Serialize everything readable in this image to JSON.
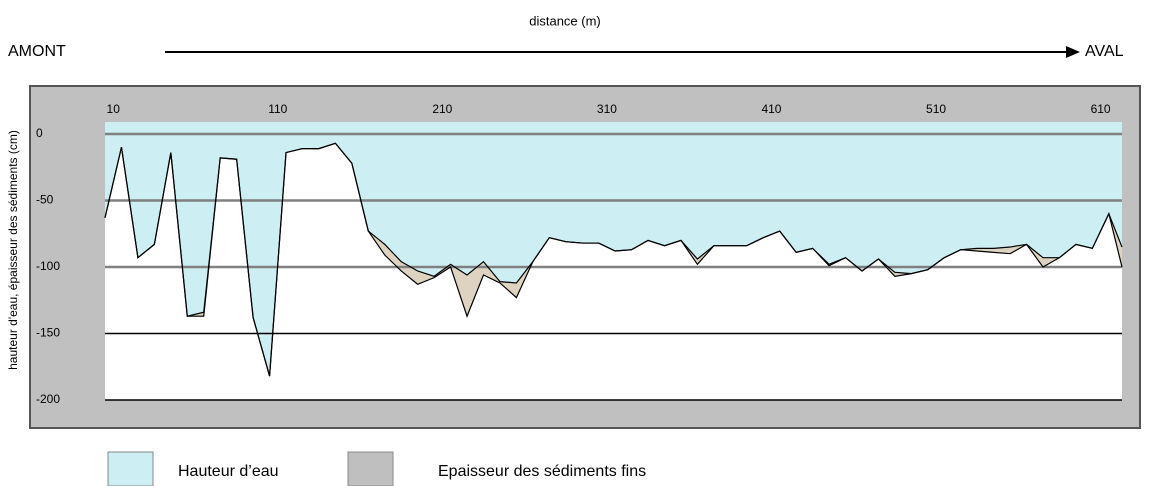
{
  "chart_data": {
    "type": "area",
    "title": "distance (m)",
    "left_label": "AMONT",
    "right_label": "AVAL",
    "y_label": "hauteur d'eau, épaisseur des sédiments (cm)",
    "x": [
      5,
      15,
      25,
      35,
      45,
      55,
      65,
      75,
      85,
      95,
      105,
      115,
      125,
      135,
      145,
      155,
      165,
      175,
      185,
      195,
      205,
      215,
      225,
      235,
      245,
      255,
      265,
      275,
      285,
      295,
      305,
      315,
      325,
      335,
      345,
      355,
      365,
      375,
      385,
      395,
      405,
      415,
      425,
      435,
      445,
      455,
      465,
      475,
      485,
      495,
      505,
      515,
      525,
      535,
      545,
      555,
      565,
      575,
      585,
      595,
      605,
      615,
      623
    ],
    "series": [
      {
        "name": "Hauteur d’eau",
        "color": "#cdeef3",
        "legend_color": "#cdeef3",
        "values": [
          -63,
          -10,
          -93,
          -83,
          -14,
          -137,
          -134,
          -18,
          -19,
          -138,
          -182,
          -14,
          -11,
          -11,
          -7,
          -22,
          -73,
          -83,
          -96,
          -103,
          -107,
          -98,
          -106,
          -96,
          -111,
          -112,
          -96,
          -78,
          -81,
          -82,
          -82,
          -88,
          -87,
          -80,
          -84,
          -80,
          -94,
          -84,
          -84,
          -84,
          -78,
          -73,
          -89,
          -86,
          -98,
          -93,
          -103,
          -94,
          -104,
          -105,
          -102,
          -93,
          -87,
          -86,
          -86,
          -85,
          -83,
          -93,
          -93,
          -83,
          -86,
          -60,
          -85
        ]
      },
      {
        "name": "Epaisseur des sédiments fins",
        "color": "#ddd3c0",
        "legend_color": "#bfbfbf",
        "values": [
          0,
          0,
          0,
          0,
          0,
          0,
          3,
          0,
          0,
          0,
          0,
          0,
          0,
          0,
          0,
          0,
          0,
          8,
          7,
          10,
          1,
          2,
          31,
          10,
          1,
          11,
          0,
          0,
          0,
          0,
          0,
          0,
          0,
          0,
          0,
          0,
          4,
          0,
          0,
          0,
          0,
          0,
          0,
          0,
          1,
          0,
          0,
          0,
          3,
          0,
          0,
          0,
          0,
          2,
          3,
          5,
          0,
          7,
          0,
          0,
          0,
          0,
          15
        ]
      }
    ],
    "xlim": [
      5,
      623
    ],
    "xticks": [
      10,
      110,
      210,
      310,
      410,
      510,
      610
    ],
    "ylim": [
      -200,
      9
    ],
    "yticks": [
      0,
      -50,
      -100,
      -150,
      -200
    ],
    "grid": true
  }
}
